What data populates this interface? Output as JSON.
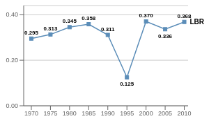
{
  "chart_data": {
    "type": "line",
    "x": [
      1970,
      1975,
      1980,
      1985,
      1990,
      1995,
      2000,
      2005,
      2010
    ],
    "values": [
      0.295,
      0.313,
      0.345,
      0.358,
      0.311,
      0.125,
      0.37,
      0.336,
      0.368
    ],
    "value_labels": [
      "0.295",
      "0.313",
      "0.345",
      "0.358",
      "0.311",
      "0.125",
      "0.370",
      "0.336",
      "0.368"
    ],
    "data_labels": true,
    "color": "#5b8db8",
    "marker": "square",
    "annotations": [
      "LBR"
    ],
    "xlim": [
      1968,
      2011
    ],
    "ylim": [
      0.0,
      0.44
    ],
    "xticks": [
      1970,
      1975,
      1980,
      1985,
      1990,
      1995,
      2000,
      2005,
      2010
    ],
    "yticks": [
      {
        "value": 0.0,
        "label": "0.00"
      },
      {
        "value": 0.2,
        "label": "0.20"
      },
      {
        "value": 0.4,
        "label": "0.40"
      }
    ],
    "grid": true
  }
}
